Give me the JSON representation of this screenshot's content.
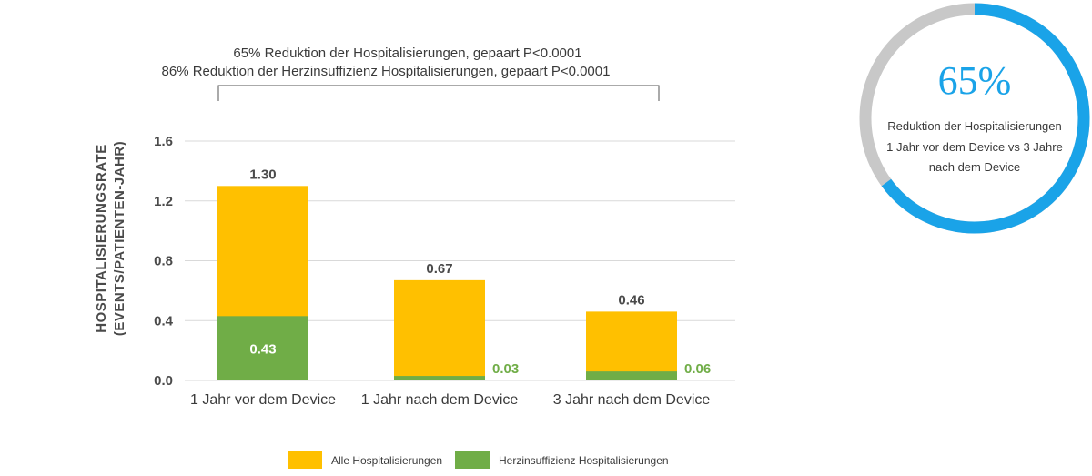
{
  "chart_data": {
    "type": "bar",
    "stacked": true,
    "categories": [
      "1 Jahr vor dem Device",
      "1 Jahr nach dem Device",
      "3 Jahr nach dem Device"
    ],
    "series": [
      {
        "name": "Alle Hospitalisierungen",
        "values": [
          1.3,
          0.67,
          0.46
        ],
        "labels": [
          "1.30",
          "0.67",
          "0.46"
        ],
        "color": "#FFC000"
      },
      {
        "name": "Herzinsuffizienz Hospitalisierungen",
        "values": [
          0.43,
          0.03,
          0.06
        ],
        "labels": [
          "0.43",
          "0.03",
          "0.06"
        ],
        "color": "#70AD47"
      }
    ],
    "ylabel": [
      "HOSPITALISIERUNGSRATE",
      "(EVENTS/PATIENTEN-JAHR)"
    ],
    "ylim": [
      0,
      1.6
    ],
    "yticks": [
      "0.0",
      "0.4",
      "0.8",
      "1.2",
      "1.6"
    ],
    "grid": true,
    "legend_position": "bottom-center",
    "annotations": [
      "65% Reduktion der Hospitalisierungen, gepaart  P<0.0001",
      "86% Reduktion der Herzinsuffizienz Hospitalisierungen, gepaart  P<0.0001"
    ]
  },
  "callout": {
    "percent": "65%",
    "progress": 0.65,
    "text_lines": [
      "Reduktion der Hospitalisierungen",
      "1 Jahr vor dem Device vs 3 Jahre",
      "nach dem Device"
    ],
    "ring_color": "#1AA3E8",
    "track_color": "#C8C8C8"
  },
  "colors": {
    "grid": "#D9D9D9",
    "value_text": "#4a4a4a",
    "green_text": "#70AD47"
  }
}
